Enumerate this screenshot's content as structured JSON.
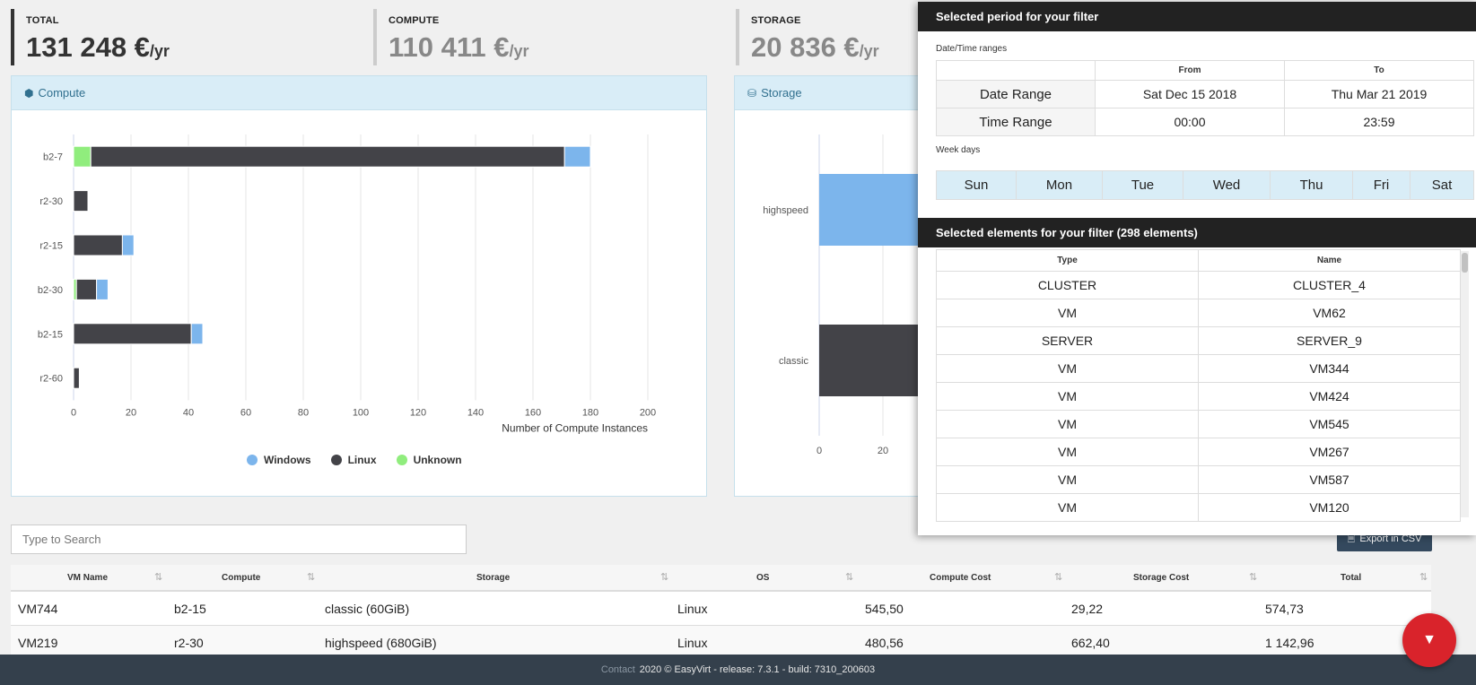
{
  "kpis": {
    "total": {
      "label": "TOTAL",
      "value": "131 248 €",
      "unit": "/yr"
    },
    "compute": {
      "label": "COMPUTE",
      "value": "110 411 €",
      "unit": "/yr"
    },
    "storage": {
      "label": "STORAGE",
      "value": "20 836 €",
      "unit": "/yr"
    }
  },
  "compute_panel": {
    "title": "Compute"
  },
  "storage_panel": {
    "title": "Storage"
  },
  "chart_data": [
    {
      "type": "bar",
      "orientation": "horizontal",
      "stacked": true,
      "categories": [
        "b2-7",
        "r2-30",
        "r2-15",
        "b2-30",
        "b2-15",
        "r2-60"
      ],
      "series": [
        {
          "name": "Unknown",
          "color": "#90ed7d",
          "values": [
            6,
            0,
            0,
            1,
            0,
            0
          ]
        },
        {
          "name": "Linux",
          "color": "#434348",
          "values": [
            165,
            5,
            17,
            7,
            41,
            2
          ]
        },
        {
          "name": "Windows",
          "color": "#7cb5ec",
          "values": [
            9,
            0,
            4,
            4,
            4,
            0
          ]
        }
      ],
      "xlabel": "Number of Compute Instances",
      "xlim": [
        0,
        200
      ],
      "xticks": [
        0,
        20,
        40,
        60,
        80,
        100,
        120,
        140,
        160,
        180,
        200
      ],
      "grid": true,
      "legend": [
        "Windows",
        "Linux",
        "Unknown"
      ],
      "legend_position": "bottom-center"
    },
    {
      "type": "bar",
      "orientation": "horizontal",
      "categories": [
        "highspeed",
        "classic"
      ],
      "series": [
        {
          "color": "#7cb5ec",
          "values": [
            40,
            null
          ]
        },
        {
          "color": "#434348",
          "values": [
            null,
            40
          ]
        }
      ],
      "xticks": [
        0,
        20
      ],
      "grid": true
    }
  ],
  "filter": {
    "period_title": "Selected period for your filter",
    "ranges_label": "Date/Time ranges",
    "from_label": "From",
    "to_label": "To",
    "rows": [
      {
        "label": "Date Range",
        "from": "Sat Dec 15 2018",
        "to": "Thu Mar 21 2019"
      },
      {
        "label": "Time Range",
        "from": "00:00",
        "to": "23:59"
      }
    ],
    "weekdays_label": "Week days",
    "weekdays": [
      "Sun",
      "Mon",
      "Tue",
      "Wed",
      "Thu",
      "Fri",
      "Sat"
    ],
    "elements_title": "Selected elements for your filter (298 elements)",
    "type_header": "Type",
    "name_header": "Name",
    "elements": [
      {
        "type": "CLUSTER",
        "name": "CLUSTER_4"
      },
      {
        "type": "VM",
        "name": "VM62"
      },
      {
        "type": "SERVER",
        "name": "SERVER_9"
      },
      {
        "type": "VM",
        "name": "VM344"
      },
      {
        "type": "VM",
        "name": "VM424"
      },
      {
        "type": "VM",
        "name": "VM545"
      },
      {
        "type": "VM",
        "name": "VM267"
      },
      {
        "type": "VM",
        "name": "VM587"
      },
      {
        "type": "VM",
        "name": "VM120"
      }
    ]
  },
  "search": {
    "placeholder": "Type to Search"
  },
  "export_label": "Export in CSV",
  "table": {
    "headers": [
      "VM Name",
      "Compute",
      "Storage",
      "OS",
      "Compute Cost",
      "Storage Cost",
      "Total"
    ],
    "rows": [
      [
        "VM744",
        "b2-15",
        "classic (60GiB)",
        "Linux",
        "545,50",
        "29,22",
        "574,73"
      ],
      [
        "VM219",
        "r2-30",
        "highspeed (680GiB)",
        "Linux",
        "480,56",
        "662,40",
        "1 142,96"
      ]
    ]
  },
  "footer": {
    "contact": "Contact",
    "text": "2020 © EasyVirt - release: 7.3.1 - build: 7310_200603"
  }
}
